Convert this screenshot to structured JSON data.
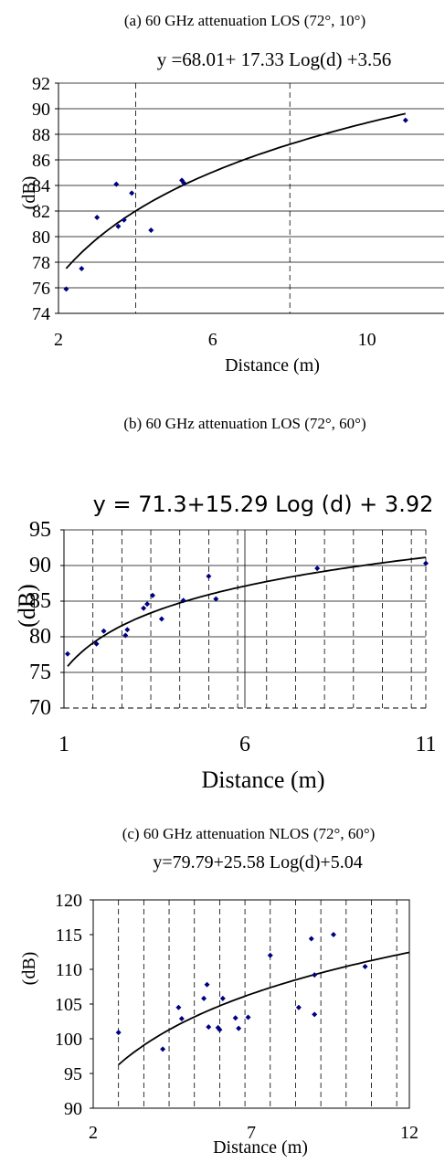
{
  "chart_data": [
    {
      "type": "scatter",
      "caption": "(a) 60 GHz attenuation LOS (72°, 10°)",
      "equation": "y =68.01+ 17.33 Log(d) +3.56",
      "xlabel": "Distance (m)",
      "ylabel": "(dB)",
      "xlim": [
        2,
        12
      ],
      "ylim": [
        74,
        92
      ],
      "xticks": [
        2,
        6,
        10
      ],
      "xtick_labels": [
        "2",
        "6",
        "10"
      ],
      "yticks": [
        74,
        76,
        78,
        80,
        82,
        84,
        86,
        88,
        90,
        92
      ],
      "grid": "horizontal solid; vertical dashed",
      "points": [
        {
          "x": 2.2,
          "y": 75.9
        },
        {
          "x": 2.6,
          "y": 77.5
        },
        {
          "x": 3.0,
          "y": 81.5
        },
        {
          "x": 3.5,
          "y": 84.1
        },
        {
          "x": 3.55,
          "y": 80.8
        },
        {
          "x": 3.7,
          "y": 81.3
        },
        {
          "x": 3.9,
          "y": 83.4
        },
        {
          "x": 4.4,
          "y": 80.5
        },
        {
          "x": 5.2,
          "y": 84.4
        },
        {
          "x": 5.25,
          "y": 84.2
        },
        {
          "x": 11.0,
          "y": 89.1
        }
      ],
      "fit": {
        "a": 68.01,
        "b": 17.33,
        "c": 3.56,
        "x_range": [
          2.2,
          11.0
        ]
      }
    },
    {
      "type": "scatter",
      "caption": "(b) 60 GHz attenuation LOS (72°, 60°)",
      "equation": "y = 71.3+15.29 Log (d) + 3.92",
      "xlabel": "Distance (m)",
      "ylabel": "(dB)",
      "xlim": [
        1,
        11
      ],
      "ylim": [
        70,
        95
      ],
      "xticks": [
        1,
        6,
        11
      ],
      "xtick_labels": [
        "1",
        "6",
        "11"
      ],
      "yticks": [
        70,
        75,
        80,
        85,
        90,
        95
      ],
      "grid": "horizontal solid; vertical dashed",
      "points": [
        {
          "x": 1.1,
          "y": 77.6
        },
        {
          "x": 1.9,
          "y": 79.0
        },
        {
          "x": 2.1,
          "y": 80.8
        },
        {
          "x": 2.7,
          "y": 80.2
        },
        {
          "x": 2.75,
          "y": 81.0
        },
        {
          "x": 3.2,
          "y": 84.0
        },
        {
          "x": 3.3,
          "y": 84.6
        },
        {
          "x": 3.45,
          "y": 85.8
        },
        {
          "x": 3.7,
          "y": 82.5
        },
        {
          "x": 4.3,
          "y": 85.1
        },
        {
          "x": 5.0,
          "y": 88.5
        },
        {
          "x": 5.2,
          "y": 85.3
        },
        {
          "x": 8.0,
          "y": 89.6
        },
        {
          "x": 11.0,
          "y": 90.3
        }
      ],
      "fit": {
        "a": 71.3,
        "b": 15.29,
        "c": 3.92,
        "x_range": [
          1.1,
          11.0
        ]
      }
    },
    {
      "type": "scatter",
      "caption": "(c) 60 GHz attenuation NLOS (72°, 60°)",
      "equation": "y=79.79+25.58 Log(d)+5.04",
      "xlabel": "Distance (m)",
      "ylabel": "(dB)",
      "xlim": [
        2,
        12
      ],
      "ylim": [
        90,
        120
      ],
      "xticks": [
        2,
        7,
        12
      ],
      "xtick_labels": [
        "2",
        "7",
        "12"
      ],
      "yticks": [
        90,
        95,
        100,
        105,
        110,
        115,
        120
      ],
      "grid": "vertical dashed",
      "points": [
        {
          "x": 2.8,
          "y": 100.9
        },
        {
          "x": 4.2,
          "y": 98.5
        },
        {
          "x": 4.7,
          "y": 104.5
        },
        {
          "x": 4.8,
          "y": 102.9
        },
        {
          "x": 5.5,
          "y": 105.8
        },
        {
          "x": 5.6,
          "y": 107.8
        },
        {
          "x": 5.65,
          "y": 101.7
        },
        {
          "x": 5.95,
          "y": 101.6
        },
        {
          "x": 6.0,
          "y": 101.3
        },
        {
          "x": 6.1,
          "y": 105.8
        },
        {
          "x": 6.5,
          "y": 103.0
        },
        {
          "x": 6.6,
          "y": 101.5
        },
        {
          "x": 6.9,
          "y": 103.1
        },
        {
          "x": 7.6,
          "y": 112.0
        },
        {
          "x": 8.5,
          "y": 104.5
        },
        {
          "x": 8.9,
          "y": 114.4
        },
        {
          "x": 9.0,
          "y": 103.5
        },
        {
          "x": 9.0,
          "y": 109.2
        },
        {
          "x": 9.6,
          "y": 115.0
        },
        {
          "x": 10.6,
          "y": 110.4
        }
      ],
      "fit": {
        "a": 79.79,
        "b": 25.58,
        "c": 5.04,
        "x_range": [
          2.8,
          12.0
        ]
      }
    }
  ]
}
